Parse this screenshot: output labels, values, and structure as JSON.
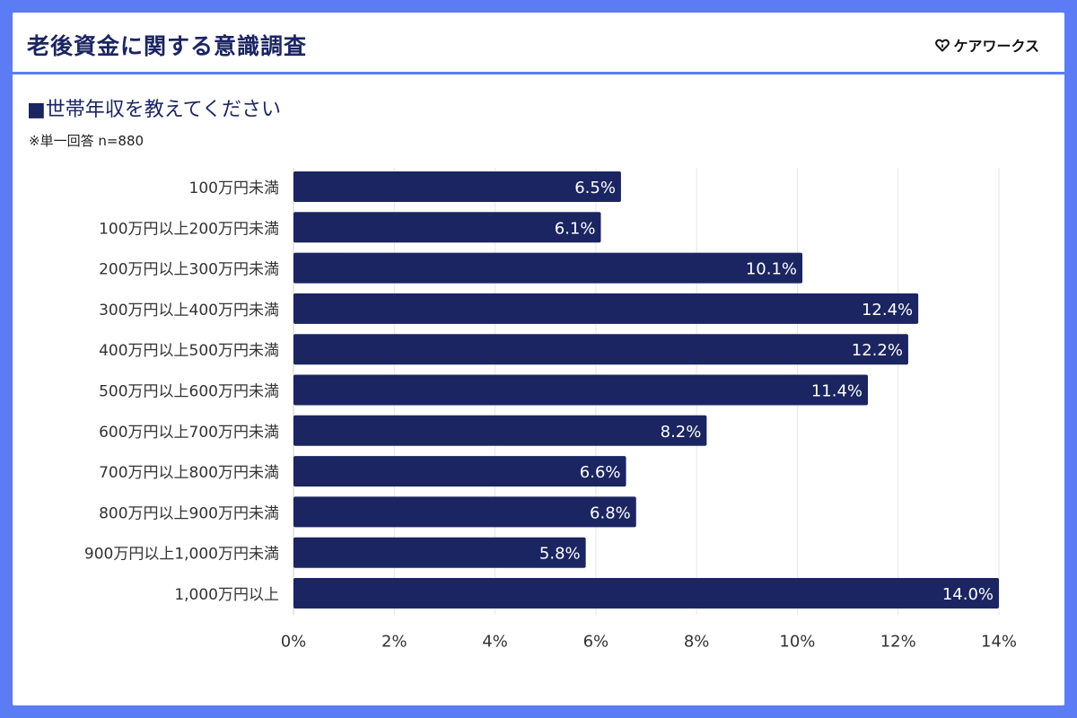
{
  "header": {
    "title": "老後資金に関する意識調査",
    "brand": "ケアワークス",
    "brand_icon": "heart-outline-icon"
  },
  "question": "■世帯年収を教えてください",
  "note": "※単一回答 n=880",
  "colors": {
    "frame": "#5b7cf5",
    "title_text": "#1b2561",
    "bar": "#1b2561",
    "bar_label": "#ffffff",
    "grid": "#e6e6e6",
    "axis_text": "#333333"
  },
  "chart_data": {
    "type": "bar",
    "orientation": "horizontal",
    "categories": [
      "100万円未満",
      "100万円以上200万円未満",
      "200万円以上300万円未満",
      "300万円以上400万円未満",
      "400万円以上500万円未満",
      "500万円以上600万円未満",
      "600万円以上700万円未満",
      "700万円以上800万円未満",
      "800万円以上900万円未満",
      "900万円以上1,000万円未満",
      "1,000万円以上"
    ],
    "values": [
      6.5,
      6.1,
      10.1,
      12.4,
      12.2,
      11.4,
      8.2,
      6.6,
      6.8,
      5.8,
      14.0
    ],
    "data_labels": [
      "6.5%",
      "6.1%",
      "10.1%",
      "12.4%",
      "12.2%",
      "11.4%",
      "8.2%",
      "6.6%",
      "6.8%",
      "5.8%",
      "14.0%"
    ],
    "xlim": [
      0,
      14
    ],
    "x_ticks": [
      0,
      2,
      4,
      6,
      8,
      10,
      12,
      14
    ],
    "x_tick_labels": [
      "0%",
      "2%",
      "4%",
      "6%",
      "8%",
      "10%",
      "12%",
      "14%"
    ],
    "grid": true,
    "legend": "none"
  }
}
